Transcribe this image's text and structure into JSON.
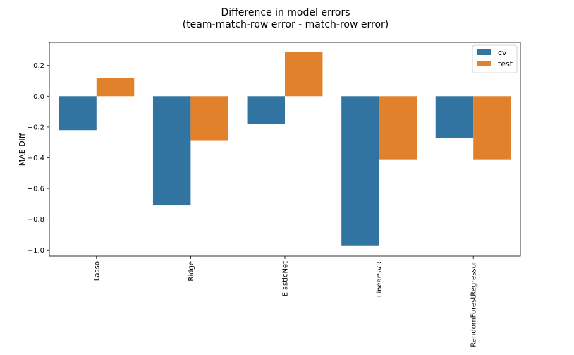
{
  "chart_data": {
    "type": "bar",
    "title": "Difference in model errors",
    "subtitle": "(team-match-row error - match-row error)",
    "xlabel": "",
    "ylabel": "MAE Diff",
    "categories": [
      "Lasso",
      "Ridge",
      "ElasticNet",
      "LinearSVR",
      "RandomForestRegressor"
    ],
    "series": [
      {
        "name": "cv",
        "color": "#3274a1",
        "values": [
          -0.22,
          -0.71,
          -0.18,
          -0.97,
          -0.27
        ]
      },
      {
        "name": "test",
        "color": "#e1812c",
        "values": [
          0.12,
          -0.29,
          0.29,
          -0.41,
          -0.41
        ]
      }
    ],
    "ylim": [
      -1.04,
      0.35
    ],
    "yticks": [
      0.2,
      0.0,
      -0.2,
      -0.4,
      -0.6,
      -0.8,
      -1.0
    ],
    "ytick_labels": [
      "0.2",
      "0.0",
      "−0.2",
      "−0.4",
      "−0.6",
      "−0.8",
      "−1.0"
    ],
    "grid": false,
    "legend_position": "top-right"
  }
}
